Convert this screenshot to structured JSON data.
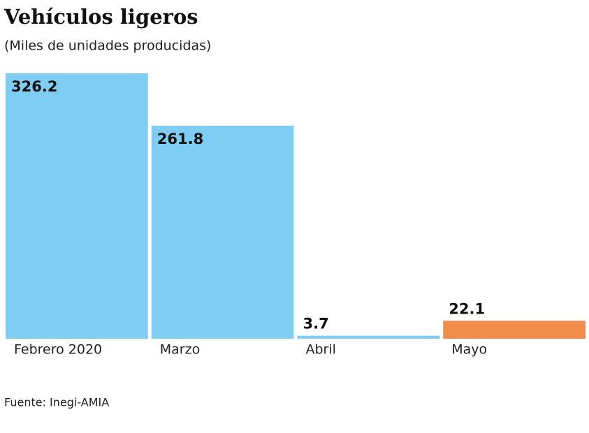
{
  "chart_data": {
    "type": "bar",
    "title": "Vehículos ligeros",
    "subtitle": "(Miles de unidades producidas)",
    "categories": [
      "Febrero 2020",
      "Marzo",
      "Abril",
      "Mayo"
    ],
    "values": [
      326.2,
      261.8,
      3.7,
      22.1
    ],
    "colors": [
      "#7fcdf3",
      "#7fcdf3",
      "#7fcdf3",
      "#f28c4a"
    ],
    "source": "Fuente: Inegi-AMIA"
  }
}
